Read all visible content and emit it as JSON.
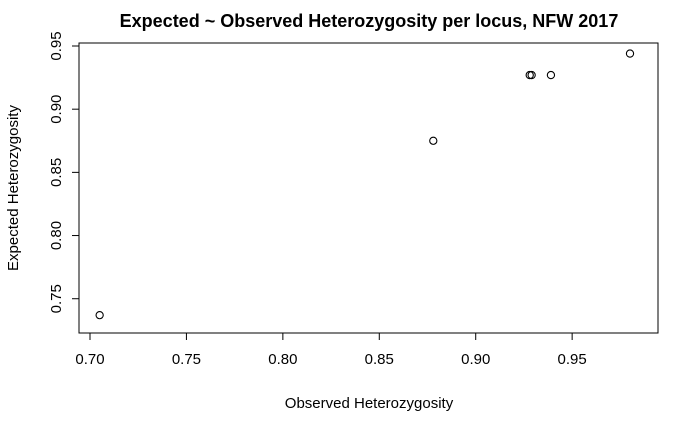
{
  "chart_data": {
    "type": "scatter",
    "title": "Expected ~ Observed Heterozygosity per locus, NFW 2017",
    "xlabel": "Observed Heterozygosity",
    "ylabel": "Expected Heterozygosity",
    "xlim": [
      0.7,
      0.98
    ],
    "ylim": [
      0.73,
      0.95
    ],
    "xticks": [
      0.7,
      0.75,
      0.8,
      0.85,
      0.9,
      0.95
    ],
    "xtick_labels": [
      "0.70",
      "0.75",
      "0.80",
      "0.85",
      "0.90",
      "0.95"
    ],
    "yticks": [
      0.75,
      0.8,
      0.85,
      0.9,
      0.95
    ],
    "ytick_labels": [
      "0.75",
      "0.80",
      "0.85",
      "0.90",
      "0.95"
    ],
    "grid": false,
    "points": [
      {
        "x": 0.705,
        "y": 0.737
      },
      {
        "x": 0.878,
        "y": 0.875
      },
      {
        "x": 0.928,
        "y": 0.927
      },
      {
        "x": 0.929,
        "y": 0.927
      },
      {
        "x": 0.939,
        "y": 0.927
      },
      {
        "x": 0.98,
        "y": 0.944
      }
    ]
  }
}
